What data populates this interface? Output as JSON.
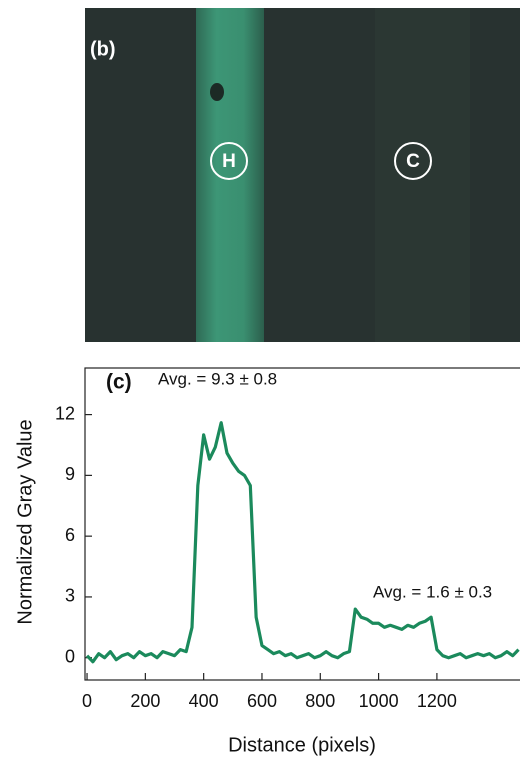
{
  "panel_b": {
    "label": "(b)",
    "markers": [
      "H",
      "C"
    ]
  },
  "chart_data": {
    "type": "line",
    "panel_label": "(c)",
    "annotations": [
      "Avg. = 9.3 ± 0.8",
      "Avg. = 1.6 ± 0.3"
    ],
    "xlabel": "Distance (pixels)",
    "ylabel": "Normalized Gray Value",
    "xlim": [
      -7,
      1485
    ],
    "ylim": [
      -1.1,
      14.3
    ],
    "xticks": [
      0,
      200,
      400,
      600,
      800,
      1000,
      1200
    ],
    "yticks": [
      0,
      3,
      6,
      9,
      12
    ],
    "x": [
      0,
      20,
      40,
      60,
      80,
      100,
      120,
      140,
      160,
      180,
      200,
      220,
      240,
      260,
      280,
      300,
      320,
      340,
      360,
      380,
      400,
      420,
      440,
      460,
      480,
      500,
      520,
      540,
      560,
      580,
      600,
      620,
      640,
      660,
      680,
      700,
      720,
      740,
      760,
      780,
      800,
      820,
      840,
      860,
      880,
      900,
      920,
      940,
      960,
      980,
      1000,
      1020,
      1040,
      1060,
      1080,
      1100,
      1120,
      1140,
      1160,
      1180,
      1200,
      1220,
      1240,
      1260,
      1280,
      1300,
      1320,
      1340,
      1360,
      1380,
      1400,
      1420,
      1440,
      1460,
      1480
    ],
    "series": [
      {
        "color": "#1b8a5c",
        "values": [
          0.1,
          -0.2,
          0.2,
          0,
          0.3,
          -0.1,
          0.1,
          0.2,
          0,
          0.3,
          0.1,
          0.2,
          0,
          0.3,
          0.2,
          0.1,
          0.4,
          0.3,
          1.5,
          8.5,
          11.0,
          9.8,
          10.4,
          11.6,
          10.1,
          9.6,
          9.2,
          9.0,
          8.5,
          2.0,
          0.6,
          0.4,
          0.2,
          0.3,
          0.1,
          0.2,
          0,
          0.1,
          0.2,
          0,
          0.1,
          0.3,
          0.1,
          0,
          0.2,
          0.3,
          2.4,
          2.0,
          1.9,
          1.7,
          1.7,
          1.5,
          1.6,
          1.5,
          1.4,
          1.6,
          1.5,
          1.7,
          1.8,
          2.0,
          0.4,
          0.1,
          0,
          0.1,
          0.2,
          0,
          0.1,
          0.2,
          0.1,
          0.2,
          0,
          0.1,
          0.3,
          0.1,
          0.4
        ]
      }
    ]
  }
}
